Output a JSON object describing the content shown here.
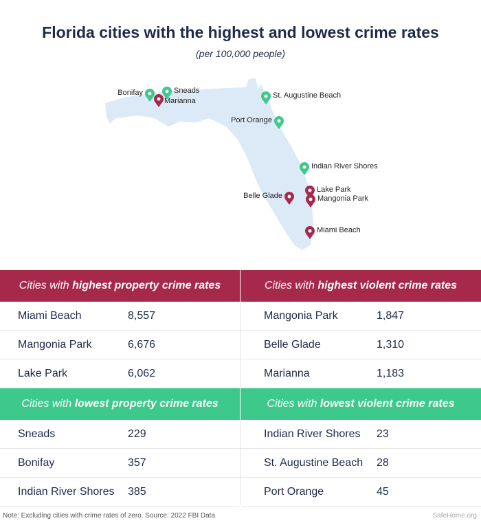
{
  "title": "Florida cities with the highest and lowest crime rates",
  "subtitle": "(per 100,000 people)",
  "colors": {
    "high": "#a6284b",
    "low": "#3dc98b",
    "map": "#dce9f6",
    "title": "#1f2a4a"
  },
  "map_pins": [
    {
      "label": "Bonifay",
      "type": "low"
    },
    {
      "label": "Sneads",
      "type": "low"
    },
    {
      "label": "Marianna",
      "type": "high"
    },
    {
      "label": "St. Augustine Beach",
      "type": "low"
    },
    {
      "label": "Port Orange",
      "type": "low"
    },
    {
      "label": "Indian River Shores",
      "type": "low"
    },
    {
      "label": "Lake Park",
      "type": "high"
    },
    {
      "label": "Mangonia Park",
      "type": "high"
    },
    {
      "label": "Belle Glade",
      "type": "high"
    },
    {
      "label": "Miami Beach",
      "type": "high"
    }
  ],
  "tables": {
    "high_property": {
      "prefix": "Cities with ",
      "emph": "highest property crime rates",
      "rows": [
        [
          "Miami Beach",
          "8,557"
        ],
        [
          "Mangonia Park",
          "6,676"
        ],
        [
          "Lake Park",
          "6,062"
        ]
      ]
    },
    "high_violent": {
      "prefix": "Cities with ",
      "emph": "highest violent crime rates",
      "rows": [
        [
          "Mangonia Park",
          "1,847"
        ],
        [
          "Belle Glade",
          "1,310"
        ],
        [
          "Marianna",
          "1,183"
        ]
      ]
    },
    "low_property": {
      "prefix": "Cities with ",
      "emph": "lowest property crime rates",
      "rows": [
        [
          "Sneads",
          "229"
        ],
        [
          "Bonifay",
          "357"
        ],
        [
          "Indian River Shores",
          "385"
        ]
      ]
    },
    "low_violent": {
      "prefix": "Cities with ",
      "emph": "lowest violent crime rates",
      "rows": [
        [
          "Indian River Shores",
          "23"
        ],
        [
          "St. Augustine Beach",
          "28"
        ],
        [
          "Port Orange",
          "45"
        ]
      ]
    }
  },
  "note": "Note: Excluding cities with crime rates of zero. Source: 2022 FBI Data",
  "logo": "SafeHome.org"
}
